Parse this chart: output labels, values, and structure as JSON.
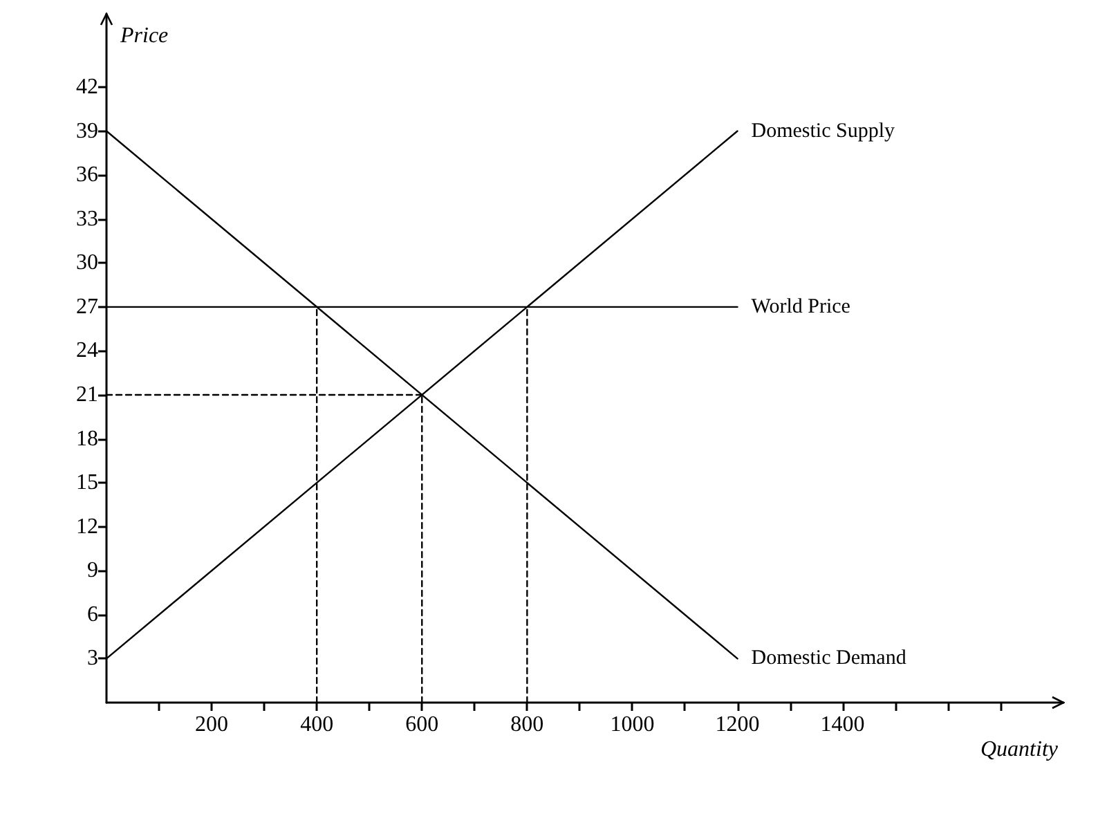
{
  "chart_data": {
    "type": "line",
    "xlabel": "Quantity",
    "ylabel": "Price",
    "series": [
      {
        "name": "Domestic Supply",
        "color": "#000000",
        "x": [
          0,
          1200
        ],
        "values": [
          3,
          39
        ]
      },
      {
        "name": "World Price",
        "color": "#000000",
        "x": [
          0,
          1200
        ],
        "values": [
          27,
          27
        ]
      },
      {
        "name": "Domestic Demand",
        "color": "#000000",
        "x": [
          0,
          1200
        ],
        "values": [
          39,
          3
        ]
      },
      {
        "color": "#000000",
        "line_style": "dashed",
        "x": [
          0,
          600
        ],
        "values": [
          21,
          21
        ]
      },
      {
        "color": "#000000",
        "line_style": "dashed",
        "x": [
          400,
          400
        ],
        "values": [
          0,
          27
        ]
      },
      {
        "color": "#000000",
        "line_style": "dashed",
        "x": [
          600,
          600
        ],
        "values": [
          0,
          21
        ]
      },
      {
        "color": "#000000",
        "line_style": "dashed",
        "x": [
          800,
          800
        ],
        "values": [
          0,
          27
        ]
      }
    ],
    "xlim": [
      0,
      1820
    ],
    "ylim": [
      0,
      47
    ],
    "xticks": [
      {
        "value": 100,
        "label": null
      },
      200,
      {
        "value": 300,
        "label": null
      },
      400,
      {
        "value": 500,
        "label": null
      },
      600,
      {
        "value": 700,
        "label": null
      },
      800,
      {
        "value": 900,
        "label": null
      },
      1000,
      {
        "value": 1100,
        "label": null
      },
      1200,
      {
        "value": 1300,
        "label": null
      },
      1400,
      {
        "value": 1500,
        "label": null
      },
      {
        "value": 1600,
        "label": null
      },
      {
        "value": 1700,
        "label": null
      }
    ],
    "yticks": [
      3,
      6,
      9,
      12,
      15,
      18,
      21,
      24,
      27,
      30,
      33,
      36,
      39,
      42
    ],
    "grid": false,
    "legend": false,
    "marker": "none",
    "line_style": "solid"
  }
}
